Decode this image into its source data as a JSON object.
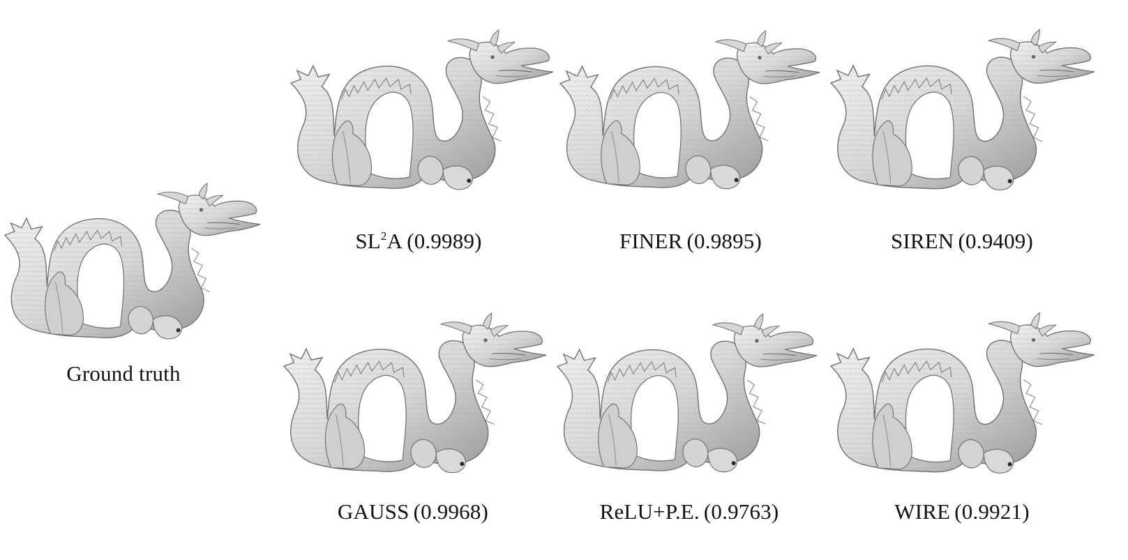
{
  "figure": {
    "panels": [
      {
        "id": "ground-truth",
        "method": "Ground truth",
        "score": ""
      },
      {
        "id": "sl2a",
        "method_prefix": "SL",
        "method_super": "2",
        "method_suffix": "A",
        "score": "(0.9989)"
      },
      {
        "id": "finer",
        "method": "FINER",
        "score": "(0.9895)"
      },
      {
        "id": "siren",
        "method": "SIREN",
        "score": "(0.9409)"
      },
      {
        "id": "gauss",
        "method": "GAUSS",
        "score": "(0.9968)"
      },
      {
        "id": "relu-pe",
        "method": "ReLU+P.E.",
        "score": "(0.9763)"
      },
      {
        "id": "wire",
        "method": "WIRE",
        "score": "(0.9921)"
      }
    ]
  },
  "colors": {
    "background": "#ffffff",
    "mesh_fill": "#d9d9d9",
    "mesh_shadow": "#8f8f8f",
    "mesh_outline": "#5f5f5f",
    "text": "#111111"
  }
}
